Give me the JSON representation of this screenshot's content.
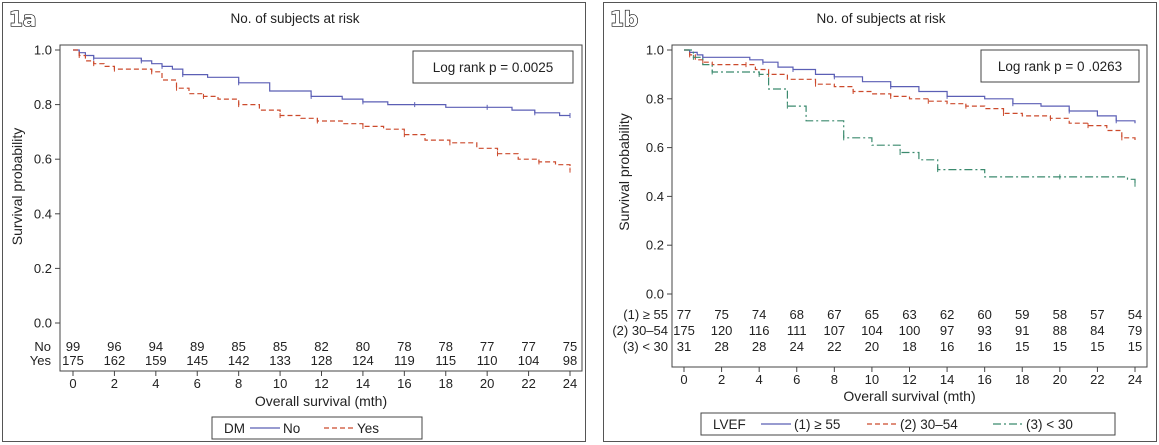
{
  "chart_data": [
    {
      "type": "line",
      "panel_label": "1a",
      "title": "No. of subjects at risk",
      "xlabel": "Overall survival  (mth)",
      "ylabel": "Survival probability",
      "xlim": [
        0,
        24
      ],
      "ylim": [
        0,
        1
      ],
      "x_ticks": [
        0,
        2,
        4,
        6,
        8,
        10,
        12,
        14,
        16,
        18,
        20,
        22,
        24
      ],
      "x_tick_labels": [
        "0",
        "2",
        "4",
        "6",
        "8",
        "10",
        "12",
        "14",
        "16",
        "18",
        "20",
        "22",
        "24"
      ],
      "y_ticks": [
        0,
        0.2,
        0.4,
        0.6,
        0.8,
        1.0
      ],
      "y_tick_labels": [
        "0.0",
        "0.2",
        "0.4",
        "0.6",
        "0.8",
        "1.0"
      ],
      "annotation": "Log rank p = 0.0025",
      "legend": {
        "title": "DM",
        "position": "bottom"
      },
      "series": [
        {
          "name": "No",
          "color": "#5b5fb5",
          "dash": "solid",
          "x": [
            0,
            0.3,
            0.6,
            1,
            1.5,
            3.3,
            3.8,
            4.3,
            4.8,
            5.3,
            6.5,
            8,
            9.5,
            11.5,
            13,
            14,
            15.2,
            16.5,
            18,
            20,
            21.2,
            22.3,
            23.5,
            24
          ],
          "y": [
            1.0,
            0.99,
            0.98,
            0.97,
            0.97,
            0.96,
            0.95,
            0.94,
            0.93,
            0.91,
            0.9,
            0.88,
            0.85,
            0.83,
            0.82,
            0.81,
            0.8,
            0.8,
            0.79,
            0.79,
            0.78,
            0.77,
            0.76,
            0.76
          ]
        },
        {
          "name": "Yes",
          "color": "#cc4a2c",
          "dash": "dash",
          "x": [
            0,
            0.3,
            0.6,
            1,
            1.5,
            2,
            3,
            3.8,
            4.3,
            5,
            5.6,
            6.3,
            7,
            8,
            9,
            10,
            11,
            11.8,
            13,
            14,
            15,
            16,
            17,
            18.2,
            19.5,
            20.5,
            21.5,
            22.5,
            23.3,
            24
          ],
          "y": [
            1.0,
            0.98,
            0.96,
            0.95,
            0.94,
            0.93,
            0.93,
            0.92,
            0.89,
            0.86,
            0.84,
            0.83,
            0.82,
            0.8,
            0.78,
            0.76,
            0.75,
            0.74,
            0.73,
            0.72,
            0.71,
            0.69,
            0.67,
            0.66,
            0.64,
            0.62,
            0.6,
            0.59,
            0.58,
            0.56
          ]
        }
      ],
      "risk_table": {
        "times": [
          0,
          2,
          4,
          6,
          8,
          10,
          12,
          14,
          16,
          18,
          20,
          22,
          24
        ],
        "rows": [
          {
            "label": "No",
            "values": [
              "99",
              "96",
              "94",
              "89",
              "85",
              "85",
              "82",
              "80",
              "78",
              "78",
              "77",
              "77",
              "75"
            ]
          },
          {
            "label": "Yes",
            "values": [
              "175",
              "162",
              "159",
              "145",
              "142",
              "133",
              "128",
              "124",
              "119",
              "115",
              "110",
              "104",
              "98"
            ]
          }
        ]
      }
    },
    {
      "type": "line",
      "panel_label": "1b",
      "title": "No. of subjects at risk",
      "xlabel": "Overall survival  (mth)",
      "ylabel": "Survival probability",
      "xlim": [
        0,
        24
      ],
      "ylim": [
        0,
        1
      ],
      "x_ticks": [
        0,
        2,
        4,
        6,
        8,
        10,
        12,
        14,
        16,
        18,
        20,
        22,
        24
      ],
      "x_tick_labels": [
        "0",
        "2",
        "4",
        "6",
        "8",
        "10",
        "12",
        "14",
        "16",
        "18",
        "20",
        "22",
        "24"
      ],
      "y_ticks": [
        0,
        0.2,
        0.4,
        0.6,
        0.8,
        1.0
      ],
      "y_tick_labels": [
        "0.0",
        "0.2",
        "0.4",
        "0.6",
        "0.8",
        "1.0"
      ],
      "annotation": "Log rank p = 0 .0263",
      "legend": {
        "title": "LVEF",
        "position": "bottom"
      },
      "series": [
        {
          "name": "(1) ≥ 55",
          "color": "#5b5fb5",
          "dash": "solid",
          "x": [
            0,
            0.3,
            0.7,
            1,
            3.5,
            4.2,
            5,
            5.8,
            7,
            8,
            9.5,
            11,
            12.5,
            14,
            16,
            17.5,
            19,
            20.5,
            22,
            23,
            24
          ],
          "y": [
            1.0,
            0.99,
            0.98,
            0.97,
            0.96,
            0.95,
            0.93,
            0.92,
            0.9,
            0.89,
            0.87,
            0.85,
            0.83,
            0.81,
            0.8,
            0.78,
            0.77,
            0.75,
            0.73,
            0.71,
            0.7
          ]
        },
        {
          "name": "(2) 30–54",
          "color": "#cc4a2c",
          "dash": "dash",
          "x": [
            0,
            0.3,
            0.6,
            1,
            1.5,
            3.3,
            3.8,
            4.5,
            5.5,
            7,
            8,
            9,
            10,
            11,
            12,
            13,
            14,
            15,
            16,
            17,
            18,
            19.5,
            20.5,
            21.5,
            22.5,
            23.3,
            24
          ],
          "y": [
            1.0,
            0.98,
            0.96,
            0.95,
            0.94,
            0.94,
            0.92,
            0.9,
            0.88,
            0.86,
            0.85,
            0.83,
            0.82,
            0.81,
            0.8,
            0.79,
            0.78,
            0.77,
            0.76,
            0.74,
            0.73,
            0.72,
            0.7,
            0.69,
            0.67,
            0.64,
            0.62
          ]
        },
        {
          "name": "(3) < 30",
          "color": "#3b8a6e",
          "dash": "dashdot",
          "x": [
            0,
            0.5,
            1,
            1.5,
            2,
            4,
            4.5,
            5.5,
            6.5,
            8.5,
            10,
            11.5,
            12.5,
            13.5,
            16,
            20,
            23.6,
            24
          ],
          "y": [
            1.0,
            0.97,
            0.94,
            0.91,
            0.91,
            0.9,
            0.84,
            0.77,
            0.71,
            0.64,
            0.61,
            0.58,
            0.55,
            0.51,
            0.48,
            0.48,
            0.47,
            0.45
          ]
        }
      ],
      "risk_table": {
        "times": [
          0,
          2,
          4,
          6,
          8,
          10,
          12,
          14,
          16,
          18,
          20,
          22,
          24
        ],
        "rows": [
          {
            "label": "(1) ≥ 55",
            "values": [
              "77",
              "75",
              "74",
              "68",
              "67",
              "65",
              "63",
              "62",
              "60",
              "59",
              "58",
              "57",
              "54"
            ]
          },
          {
            "label": "(2) 30–54",
            "values": [
              "175",
              "120",
              "116",
              "111",
              "107",
              "104",
              "100",
              "97",
              "93",
              "91",
              "88",
              "84",
              "79"
            ]
          },
          {
            "label": "(3) < 30",
            "values": [
              "31",
              "28",
              "28",
              "24",
              "22",
              "20",
              "18",
              "16",
              "16",
              "15",
              "15",
              "15",
              "15"
            ]
          }
        ]
      }
    }
  ]
}
